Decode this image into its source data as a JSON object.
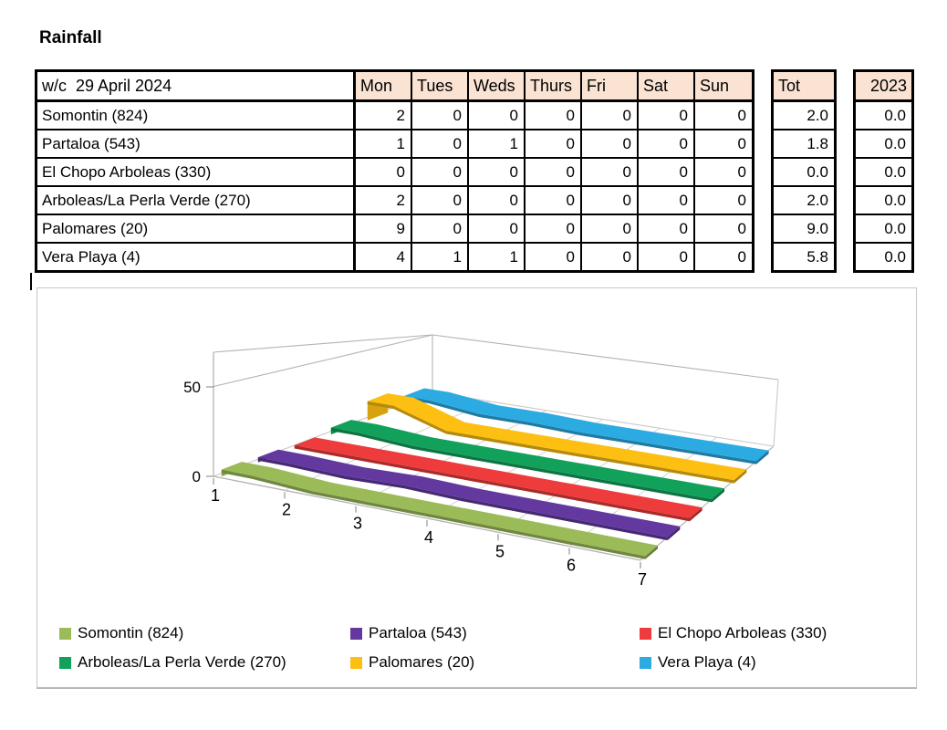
{
  "title": "Rainfall",
  "table": {
    "week_label": "w/c  29 April 2024",
    "day_headers": [
      "Mon",
      "Tues",
      "Weds",
      "Thurs",
      "Fri",
      "Sat",
      "Sun"
    ],
    "total_header": "Tot",
    "prev_year_header": "2023",
    "header_bg": "#FAE3D3",
    "rows": [
      {
        "label": "Somontin (824)",
        "values": [
          2,
          0,
          0,
          0,
          0,
          0,
          0
        ],
        "total": "2.0",
        "prev": "0.0"
      },
      {
        "label": "Partaloa (543)",
        "values": [
          1,
          0,
          1,
          0,
          0,
          0,
          0
        ],
        "total": "1.8",
        "prev": "0.0"
      },
      {
        "label": "El Chopo Arboleas (330)",
        "values": [
          0,
          0,
          0,
          0,
          0,
          0,
          0
        ],
        "total": "0.0",
        "prev": "0.0"
      },
      {
        "label": "Arboleas/La Perla Verde (270)",
        "values": [
          2,
          0,
          0,
          0,
          0,
          0,
          0
        ],
        "total": "2.0",
        "prev": "0.0"
      },
      {
        "label": "Palomares (20)",
        "values": [
          9,
          0,
          0,
          0,
          0,
          0,
          0
        ],
        "total": "9.0",
        "prev": "0.0"
      },
      {
        "label": "Vera Playa (4)",
        "values": [
          4,
          1,
          1,
          0,
          0,
          0,
          0
        ],
        "total": "5.8",
        "prev": "0.0"
      }
    ]
  },
  "chart_data": {
    "type": "line",
    "style": "3d-ribbon",
    "x": [
      1,
      2,
      3,
      4,
      5,
      6,
      7
    ],
    "x_tick_labels": [
      "1",
      "2",
      "3",
      "4",
      "5",
      "6",
      "7"
    ],
    "y_ticks": [
      0,
      50
    ],
    "y_tick_labels": [
      "0",
      "50"
    ],
    "ylim": [
      0,
      50
    ],
    "grid": true,
    "legend_position": "bottom",
    "series": [
      {
        "name": "Somontin (824)",
        "color": "#9BBB59",
        "values": [
          2,
          0,
          0,
          0,
          0,
          0,
          0
        ]
      },
      {
        "name": "Partaloa (543)",
        "color": "#6339A0",
        "values": [
          1,
          0,
          1,
          0,
          0,
          0,
          0
        ]
      },
      {
        "name": "El Chopo Arboleas (330)",
        "color": "#EE3B3B",
        "values": [
          0,
          0,
          0,
          0,
          0,
          0,
          0
        ]
      },
      {
        "name": "Arboleas/La Perla Verde (270)",
        "color": "#12A15B",
        "values": [
          2,
          0,
          0,
          0,
          0,
          0,
          0
        ]
      },
      {
        "name": "Palomares (20)",
        "color": "#FCBF12",
        "values": [
          9,
          0,
          0,
          0,
          0,
          0,
          0
        ]
      },
      {
        "name": "Vera Playa (4)",
        "color": "#2CABE3",
        "values": [
          4,
          1,
          1,
          0,
          0,
          0,
          0
        ]
      }
    ]
  }
}
